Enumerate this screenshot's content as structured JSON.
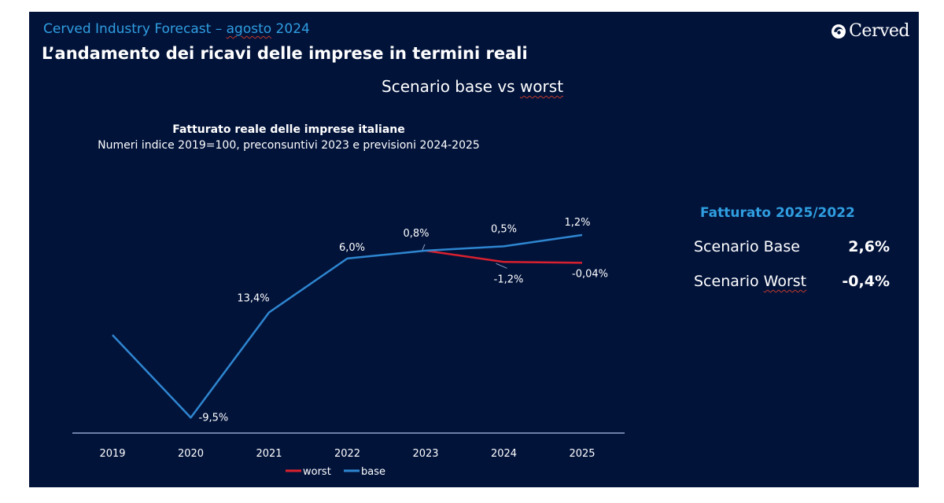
{
  "header": {
    "kicker_prefix": "Cerved Industry Forecast – ",
    "kicker_month": "agosto",
    "kicker_year": " 2024",
    "headline": "L’andamento dei ricavi delle imprese in termini reali",
    "scenario_prefix": "Scenario base vs ",
    "scenario_word": "worst"
  },
  "logo": {
    "icon": "cerved-swirl-icon",
    "text": "Cerved"
  },
  "colors": {
    "background": "#02133a",
    "accent": "#2f9ee0",
    "base_line": "#2e86d0",
    "worst_line": "#d9202e",
    "axis": "#8fa3c9",
    "text": "#ffffff"
  },
  "summary": {
    "title": "Fatturato 2025/2022",
    "rows": [
      {
        "label_prefix": "Scenario ",
        "label_word": "Base",
        "value": "2,6%"
      },
      {
        "label_prefix": "Scenario ",
        "label_word": "Worst",
        "value": "-0,4%"
      }
    ]
  },
  "chart_data": {
    "type": "line",
    "title": "Fatturato reale delle imprese italiane",
    "subtitle": "Numeri indice 2019=100, preconsuntivi 2023 e previsioni 2024-2025",
    "xlabel": "",
    "ylabel": "",
    "categories": [
      "2019",
      "2020",
      "2021",
      "2022",
      "2023",
      "2024",
      "2025"
    ],
    "ylim": [
      89,
      119
    ],
    "grid": false,
    "legend": {
      "position": "bottom",
      "entries": [
        "worst",
        "base"
      ]
    },
    "series": [
      {
        "name": "worst",
        "color": "#d9202e",
        "values": [
          null,
          null,
          null,
          null,
          109.7,
          108.4,
          108.3
        ],
        "labels": [
          null,
          null,
          null,
          null,
          null,
          "-1,2%",
          "-0,04%"
        ]
      },
      {
        "name": "base",
        "color": "#2e86d0",
        "values": [
          100,
          90.5,
          102.6,
          108.8,
          109.7,
          110.2,
          111.5
        ],
        "labels": [
          null,
          "-9,5%",
          "13,4%",
          "6,0%",
          "0,8%",
          "0,5%",
          "1,2%"
        ]
      }
    ]
  }
}
